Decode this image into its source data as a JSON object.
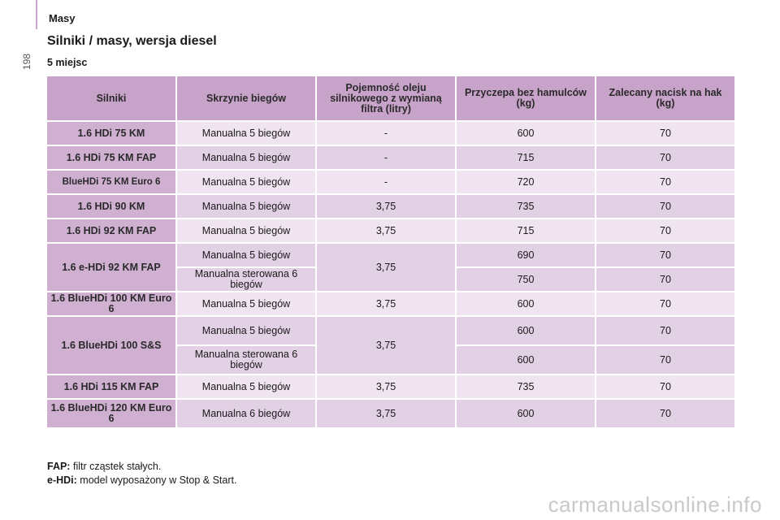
{
  "header": {
    "section": "Masy",
    "page_number": "198"
  },
  "title": "Silniki / masy, wersja diesel",
  "subtitle": "5 miejsc",
  "table": {
    "headers": [
      "Silniki",
      "Skrzynie biegów",
      "Pojemność oleju silnikowego z wymianą filtra (litry)",
      "Przyczepa bez hamulców (kg)",
      "Zalecany nacisk na hak (kg)"
    ],
    "rows": [
      {
        "engine": "1.6 HDi 75 KM",
        "gearbox": "Manualna 5 biegów",
        "oil": "-",
        "trailer": "600",
        "hitch": "70"
      },
      {
        "engine": "1.6 HDi 75 KM FAP",
        "gearbox": "Manualna 5 biegów",
        "oil": "-",
        "trailer": "715",
        "hitch": "70"
      },
      {
        "engine": "BlueHDi 75 KM Euro 6",
        "gearbox": "Manualna 5 biegów",
        "oil": "-",
        "trailer": "720",
        "hitch": "70"
      },
      {
        "engine": "1.6 HDi 90 KM",
        "gearbox": "Manualna 5 biegów",
        "oil": "3,75",
        "trailer": "735",
        "hitch": "70"
      },
      {
        "engine": "1.6 HDi 92 KM FAP",
        "gearbox": "Manualna 5 biegów",
        "oil": "3,75",
        "trailer": "715",
        "hitch": "70"
      },
      {
        "engine": "1.6 e-HDi 92 KM FAP",
        "gearbox": "Manualna 5 biegów",
        "oil": "3,75",
        "trailer": "690",
        "hitch": "70"
      },
      {
        "gearbox": "Manualna sterowana 6 biegów",
        "trailer": "750",
        "hitch": "70"
      },
      {
        "engine": "1.6 BlueHDi 100 KM Euro 6",
        "gearbox": "Manualna 5 biegów",
        "oil": "3,75",
        "trailer": "600",
        "hitch": "70"
      },
      {
        "engine": "1.6 BlueHDi 100 S&S",
        "gearbox": "Manualna 5 biegów",
        "oil": "3,75",
        "trailer": "600",
        "hitch": "70"
      },
      {
        "gearbox": "Manualna sterowana 6 biegów",
        "trailer": "600",
        "hitch": "70"
      },
      {
        "engine": "1.6 HDi 115 KM FAP",
        "gearbox": "Manualna 5 biegów",
        "oil": "3,75",
        "trailer": "735",
        "hitch": "70"
      },
      {
        "engine": "1.6 BlueHDi 120 KM Euro 6",
        "gearbox": "Manualna 6 biegów",
        "oil": "3,75",
        "trailer": "600",
        "hitch": "70"
      }
    ]
  },
  "notes": [
    {
      "term": "FAP:",
      "text": "filtr cząstek stałych."
    },
    {
      "term": "e-HDi:",
      "text": "model wyposażony w Stop & Start."
    }
  ],
  "watermark": "carmanualsonline.info"
}
